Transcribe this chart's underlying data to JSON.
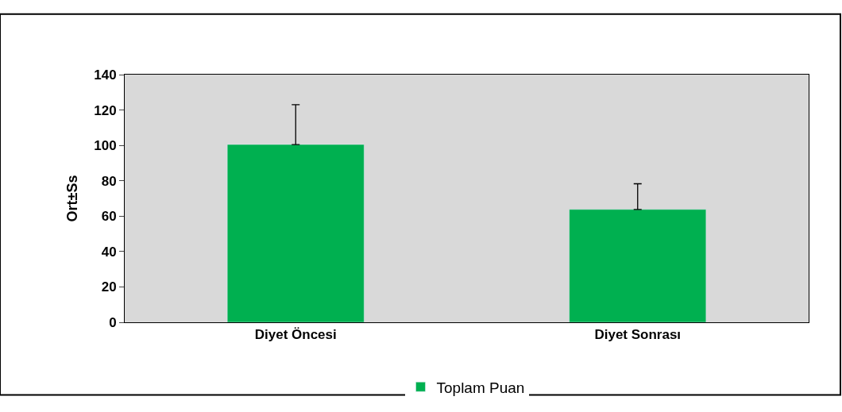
{
  "chart_data": {
    "type": "bar",
    "categories": [
      "Diyet Öncesi",
      "Diyet Sonrası"
    ],
    "series": [
      {
        "name": "Toplam Puan",
        "color": "#00b050",
        "values": [
          100.5,
          63.8
        ],
        "errors": [
          [
            100.5,
            123
          ],
          [
            63.8,
            78.3
          ]
        ]
      }
    ],
    "ylabel": "Ort±Ss",
    "ylim": [
      0,
      140
    ],
    "yticks": [
      0,
      20,
      40,
      60,
      80,
      100,
      120,
      140
    ],
    "grid": false,
    "legend": "bottom"
  }
}
